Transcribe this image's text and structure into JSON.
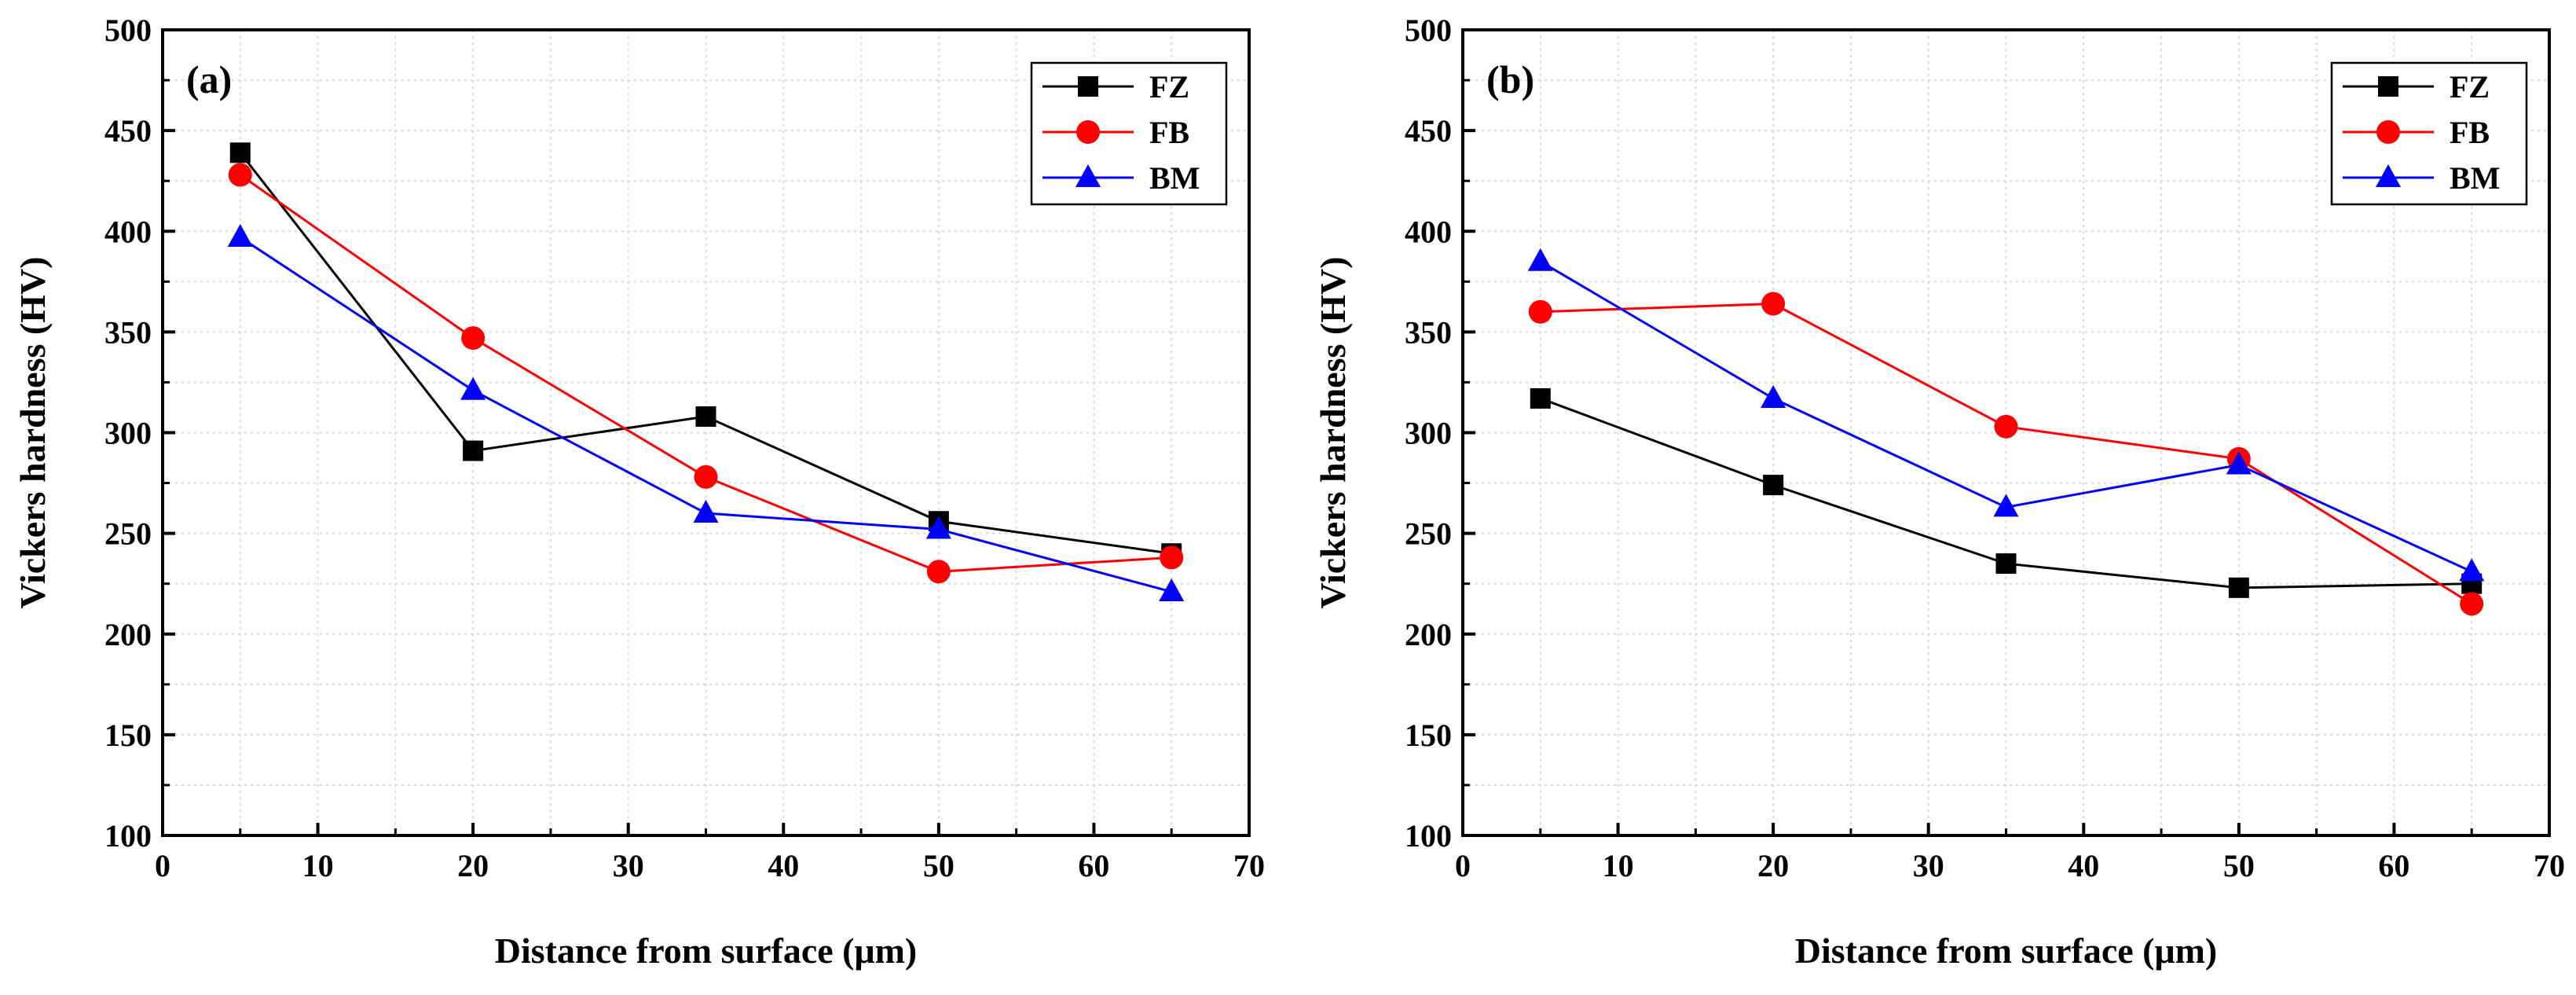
{
  "chart_data": [
    {
      "type": "line",
      "panel_label": "(a)",
      "xlabel": "Distance from surface (μm)",
      "ylabel": "Vickers hardness (HV)",
      "xlim": [
        0,
        70
      ],
      "ylim": [
        100,
        500
      ],
      "xticks": [
        0,
        10,
        20,
        30,
        40,
        50,
        60,
        70
      ],
      "yticks": [
        100,
        150,
        200,
        250,
        300,
        350,
        400,
        450,
        500
      ],
      "grid": true,
      "legend_position": "top-right",
      "x": [
        5,
        20,
        35,
        50,
        65
      ],
      "series": [
        {
          "name": "FZ",
          "color": "#000000",
          "marker": "square",
          "values": [
            439,
            291,
            308,
            256,
            240
          ]
        },
        {
          "name": "FB",
          "color": "#ff0000",
          "marker": "circle",
          "values": [
            428,
            347,
            278,
            231,
            238
          ]
        },
        {
          "name": "BM",
          "color": "#0000ff",
          "marker": "triangle",
          "values": [
            397,
            321,
            260,
            252,
            221
          ]
        }
      ]
    },
    {
      "type": "line",
      "panel_label": "(b)",
      "xlabel": "Distance from surface (μm)",
      "ylabel": "Vickers hardness (HV)",
      "xlim": [
        0,
        70
      ],
      "ylim": [
        100,
        500
      ],
      "xticks": [
        0,
        10,
        20,
        30,
        40,
        50,
        60,
        70
      ],
      "yticks": [
        100,
        150,
        200,
        250,
        300,
        350,
        400,
        450,
        500
      ],
      "grid": true,
      "legend_position": "top-right",
      "x": [
        5,
        20,
        35,
        50,
        65
      ],
      "series": [
        {
          "name": "FZ",
          "color": "#000000",
          "marker": "square",
          "values": [
            317,
            274,
            235,
            223,
            225
          ]
        },
        {
          "name": "FB",
          "color": "#ff0000",
          "marker": "circle",
          "values": [
            360,
            364,
            303,
            287,
            215
          ]
        },
        {
          "name": "BM",
          "color": "#0000ff",
          "marker": "triangle",
          "values": [
            385,
            317,
            263,
            284,
            231
          ]
        }
      ]
    }
  ]
}
